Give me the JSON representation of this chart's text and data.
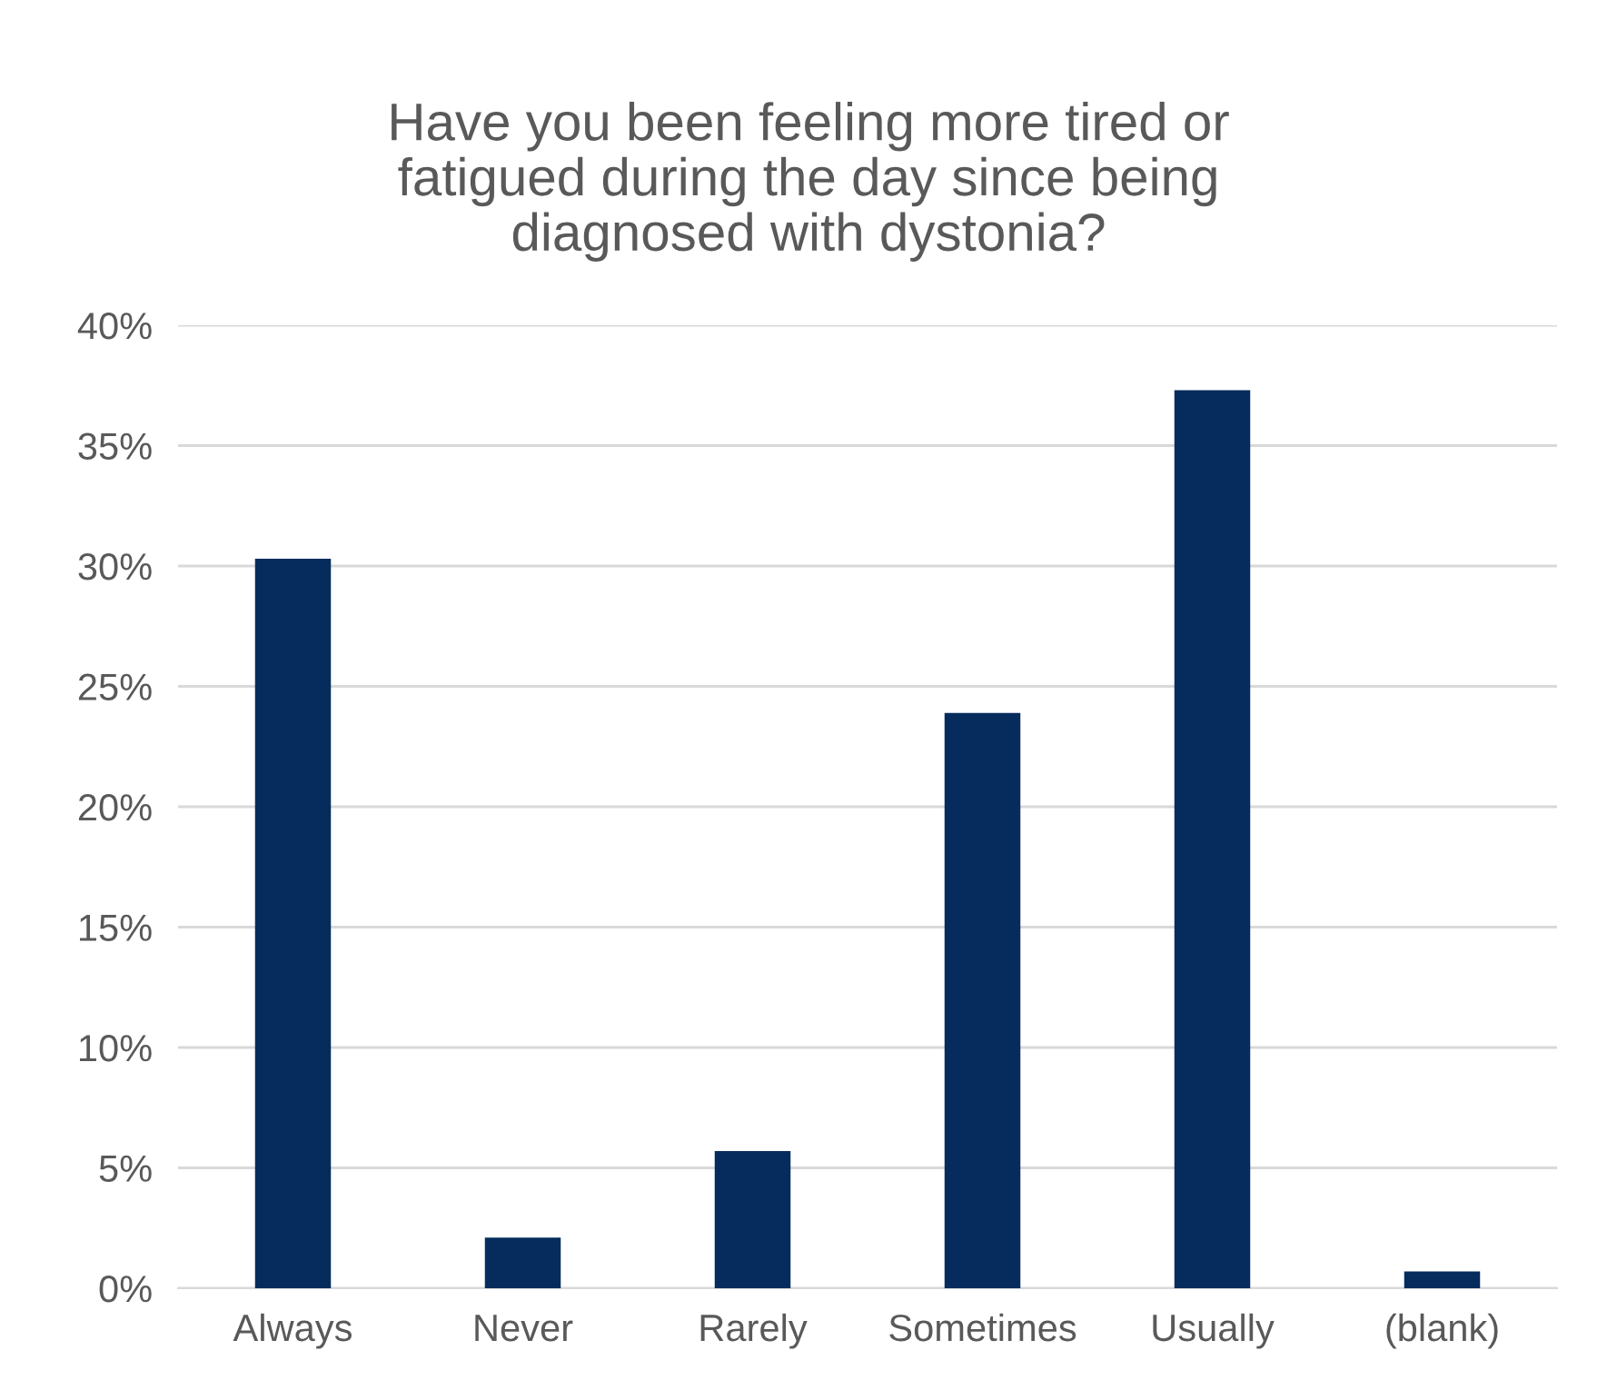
{
  "chart_data": {
    "type": "bar",
    "title": "Have you been feeling more tired or\nfatigued during the day since being\ndiagnosed with dystonia?",
    "categories": [
      "Always",
      "Never",
      "Rarely",
      "Sometimes",
      "Usually",
      "(blank)"
    ],
    "values": [
      30.3,
      2.1,
      5.7,
      23.9,
      37.3,
      0.7
    ],
    "color": "#052c5c",
    "ylim": [
      0,
      40
    ],
    "yticks": [
      {
        "value": 0,
        "label": "0%"
      },
      {
        "value": 5,
        "label": "5%"
      },
      {
        "value": 10,
        "label": "10%"
      },
      {
        "value": 15,
        "label": "15%"
      },
      {
        "value": 20,
        "label": "20%"
      },
      {
        "value": 25,
        "label": "25%"
      },
      {
        "value": 30,
        "label": "30%"
      },
      {
        "value": 35,
        "label": "35%"
      },
      {
        "value": 40,
        "label": "40%"
      }
    ],
    "grid": "y",
    "legend": false
  }
}
